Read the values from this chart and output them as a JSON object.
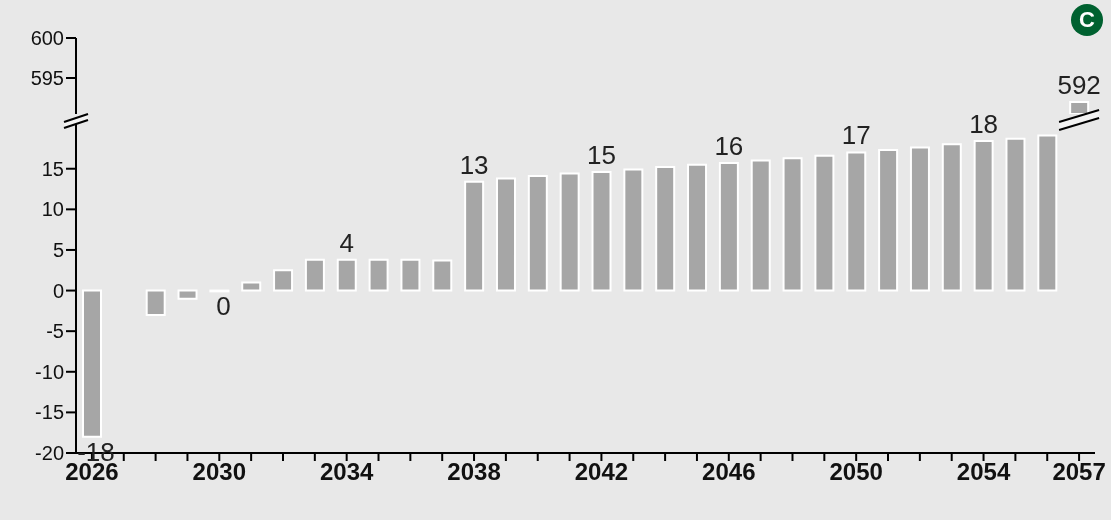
{
  "chart_data": [
    {
      "type": "bar",
      "categories": [
        "2026",
        null,
        null,
        null,
        "2030",
        null,
        null,
        null,
        "2034",
        null,
        null,
        null,
        "2038",
        null,
        null,
        null,
        "2042",
        null,
        null,
        null,
        "2046",
        null,
        null,
        null,
        "2050",
        null,
        null,
        null,
        "2054",
        null,
        null,
        "2057"
      ],
      "values": [
        null,
        null,
        null,
        null,
        null,
        null,
        null,
        null,
        null,
        null,
        null,
        null,
        null,
        null,
        null,
        null,
        null,
        null,
        null,
        null,
        null,
        null,
        null,
        null,
        null,
        null,
        null,
        null,
        null,
        null,
        null,
        592
      ],
      "value_labels": [
        null,
        null,
        null,
        null,
        null,
        null,
        null,
        null,
        null,
        null,
        null,
        null,
        null,
        null,
        null,
        null,
        null,
        null,
        null,
        null,
        null,
        null,
        null,
        null,
        null,
        null,
        null,
        null,
        null,
        null,
        null,
        "592"
      ],
      "color": "#a6a6a6",
      "ylim": [
        590.5,
        600
      ],
      "yticks": [
        595,
        600
      ],
      "tick_labels": "y",
      "annotations": [
        "C"
      ]
    },
    {
      "type": "bar",
      "categories": [
        "2026",
        null,
        null,
        null,
        "2030",
        null,
        null,
        null,
        "2034",
        null,
        null,
        null,
        "2038",
        null,
        null,
        null,
        "2042",
        null,
        null,
        null,
        "2046",
        null,
        null,
        null,
        "2050",
        null,
        null,
        null,
        "2054",
        null,
        null,
        "2057"
      ],
      "values": [
        -18,
        0,
        -3,
        -1,
        -0.1,
        1,
        2.5,
        3.8,
        3.8,
        3.8,
        3.8,
        3.7,
        13.4,
        13.8,
        14.1,
        14.4,
        14.6,
        14.9,
        15.2,
        15.5,
        15.7,
        16.0,
        16.3,
        16.6,
        17.0,
        17.3,
        17.6,
        18.0,
        18.4,
        18.7,
        19.1,
        null
      ],
      "value_labels": [
        "-18",
        null,
        null,
        null,
        "0",
        null,
        null,
        null,
        "4",
        null,
        null,
        null,
        "13",
        null,
        null,
        null,
        "15",
        null,
        null,
        null,
        "16",
        null,
        null,
        null,
        "17",
        null,
        null,
        null,
        "18",
        null,
        null,
        null
      ],
      "color": "#a6a6a6",
      "ylim": [
        -20,
        21
      ],
      "yticks": [
        -20,
        -15,
        -10,
        -5,
        0,
        5,
        10,
        15
      ]
    }
  ]
}
